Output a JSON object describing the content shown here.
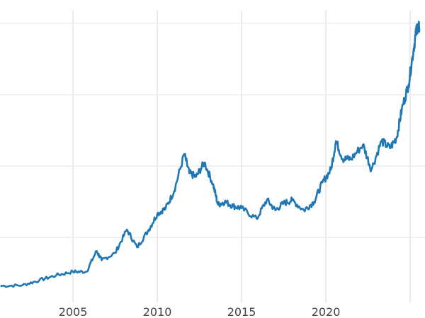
{
  "chart_data": {
    "type": "line",
    "title": "",
    "xlabel": "",
    "ylabel": "",
    "xlim": [
      2000.67,
      2025.6
    ],
    "ylim": [
      0,
      4.3
    ],
    "x_ticks": [
      2005,
      2010,
      2015,
      2020,
      2025
    ],
    "x_tick_labels": [
      "2005",
      "2010",
      "2015",
      "2020",
      ""
    ],
    "y_gridlines": [
      1,
      2,
      3,
      4
    ],
    "y_tick_labels_visible": false,
    "grid": true,
    "line_color": "#1f77b4",
    "grid_color": "#ebebeb",
    "series": [
      {
        "x": [
          2000.7,
          2002,
          2003,
          2004,
          2005,
          2005.8,
          2006.4,
          2006.7,
          2007.5,
          2008.2,
          2008.8,
          2009.5,
          2010,
          2010.5,
          2011,
          2011.6,
          2011.9,
          2012.3,
          2012.8,
          2013.3,
          2013.6,
          2014,
          2014.5,
          2015,
          2015.9,
          2016.5,
          2017,
          2017.5,
          2018,
          2018.7,
          2019.3,
          2019.8,
          2020.3,
          2020.6,
          2021,
          2021.5,
          2022.2,
          2022.7,
          2023.3,
          2023.8,
          2024.2,
          2024.5,
          2024.9,
          2025.2,
          2025.4,
          2025.55
        ],
        "y": [
          0.32,
          0.33,
          0.4,
          0.47,
          0.52,
          0.52,
          0.81,
          0.68,
          0.78,
          1.11,
          0.86,
          1.11,
          1.33,
          1.41,
          1.65,
          2.17,
          1.9,
          1.85,
          2.05,
          1.75,
          1.46,
          1.5,
          1.44,
          1.41,
          1.26,
          1.53,
          1.38,
          1.48,
          1.52,
          1.38,
          1.5,
          1.77,
          1.95,
          2.35,
          2.1,
          2.1,
          2.3,
          1.95,
          2.35,
          2.25,
          2.4,
          2.79,
          3.14,
          3.63,
          3.95,
          3.93
        ]
      }
    ]
  }
}
